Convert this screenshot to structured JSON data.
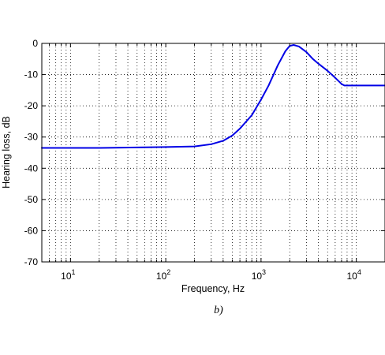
{
  "chart_data": {
    "type": "line",
    "x_scale": "log",
    "xlim": [
      5,
      20000
    ],
    "ylim": [
      -70,
      0
    ],
    "xlabel": "Frequency, Hz",
    "ylabel": "Hearing loss, dB",
    "caption": "b)",
    "grid": true,
    "grid_style": "dotted",
    "x_major_ticks": [
      {
        "value": 10,
        "base": "10",
        "exp": "1"
      },
      {
        "value": 100,
        "base": "10",
        "exp": "2"
      },
      {
        "value": 1000,
        "base": "10",
        "exp": "3"
      },
      {
        "value": 10000,
        "base": "10",
        "exp": "4"
      }
    ],
    "y_ticks": [
      0,
      -10,
      -20,
      -30,
      -40,
      -50,
      -60,
      -70
    ],
    "line_color": "#0000e6",
    "series": [
      {
        "x": [
          5,
          20,
          60,
          100,
          200,
          300,
          400,
          500,
          600,
          800,
          1000,
          1200,
          1500,
          1800,
          2000,
          2200,
          2500,
          3000,
          3500,
          4000,
          5000,
          6000,
          7000,
          7500,
          10000,
          20000
        ],
        "y": [
          -33.5,
          -33.5,
          -33.3,
          -33.2,
          -33.0,
          -32.3,
          -31.2,
          -29.5,
          -27.3,
          -23.0,
          -18.0,
          -13.5,
          -7.0,
          -2.5,
          -0.8,
          -0.5,
          -1.0,
          -2.8,
          -5.0,
          -6.5,
          -8.8,
          -11.0,
          -13.0,
          -13.5,
          -13.5,
          -13.5
        ]
      }
    ]
  }
}
